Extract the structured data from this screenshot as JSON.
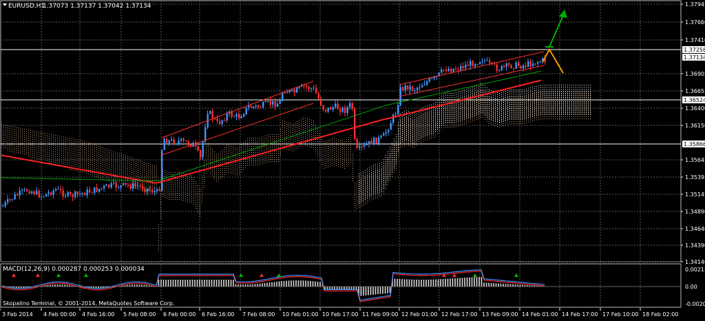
{
  "main_chart": {
    "symbol_label": "EURUSD,H1",
    "ohlc_label": "1.37073 1.37137 1.37042 1.37134",
    "price_ticks": [
      "1.37945",
      "1.37660",
      "1.37410",
      "1.36905",
      "1.36655",
      "1.36400",
      "1.36150",
      "1.35645",
      "1.35395",
      "1.35145",
      "1.34890",
      "1.34640",
      "1.34390",
      "1.34140"
    ],
    "price_tags": [
      "1.37258",
      "1.37134",
      "1.36524",
      "1.35866"
    ],
    "colors": {
      "up": "#3f95ff",
      "down": "#ff3030",
      "grid": "#5a5a5a",
      "ma_red": "#ff2020",
      "ma_green": "#00a000",
      "arrow_green": "#00b000",
      "arrow_orange": "#ff9900"
    }
  },
  "macd": {
    "label": "MACD(12,26,9) 0.000287 0.000253 0.000034",
    "ticks": [
      "0.002137",
      "0.00",
      "-0.002025"
    ]
  },
  "copyright": "Skopalino Terminal, © 2001-2014, MetaQuotes Software Corp.",
  "time_axis": [
    "3 Feb 2014",
    "4 Feb 00:00",
    "4 Feb 16:00",
    "5 Feb 08:00",
    "6 Feb 00:00",
    "6 Feb 16:00",
    "7 Feb 08:00",
    "10 Feb 01:00",
    "10 Feb 17:00",
    "11 Feb 09:00",
    "12 Feb 01:00",
    "12 Feb 17:00",
    "13 Feb 09:00",
    "14 Feb 01:00",
    "14 Feb 17:00",
    "17 Feb 10:00",
    "18 Feb 02:00"
  ]
}
